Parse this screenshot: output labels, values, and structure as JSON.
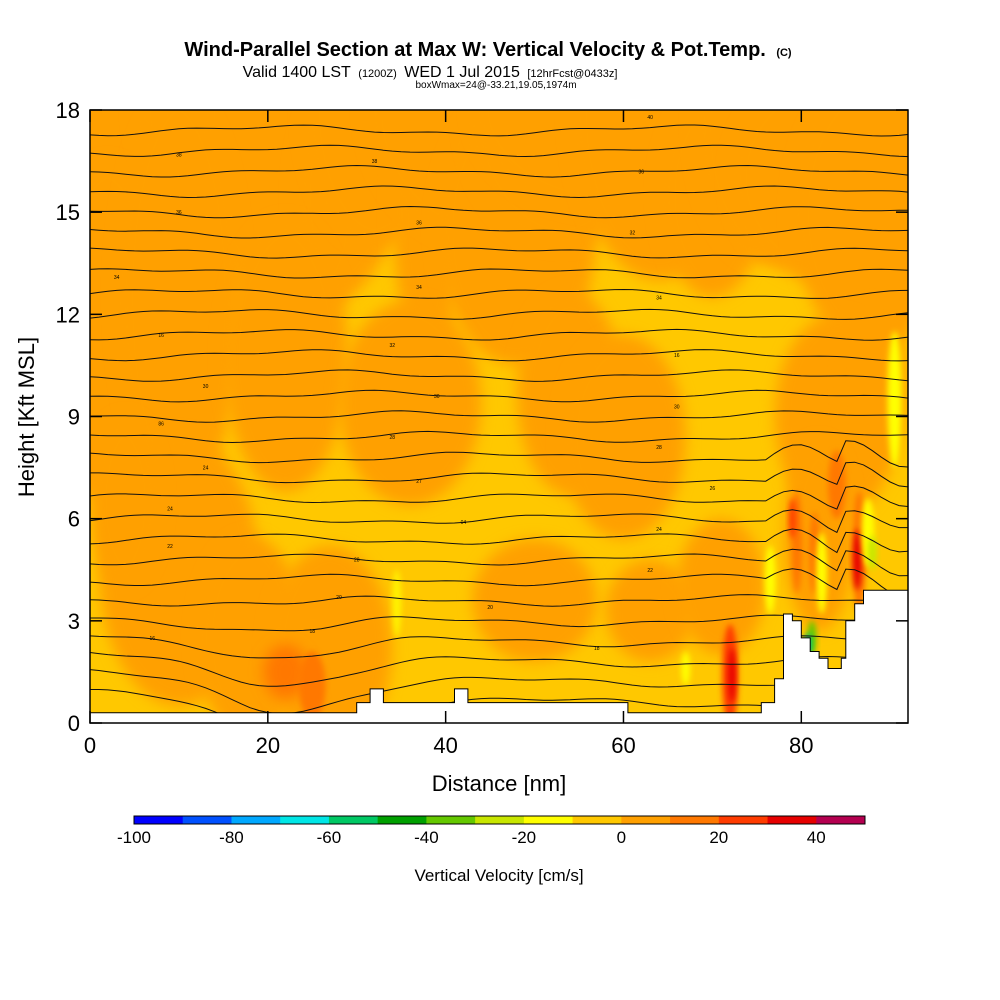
{
  "title": {
    "main": "Wind-Parallel Section at Max W: Vertical Velocity & Pot.Temp.",
    "copyright": "(C)",
    "valid_prefix": "Valid 1400 LST",
    "valid_utc": "(1200Z)",
    "valid_date": "WED 1 Jul 2015",
    "forecast": "[12hrFcst@0433z]",
    "box_info": "boxWmax=24@-33.21,19.05,1974m"
  },
  "chart_data": {
    "type": "heatmap",
    "xlabel": "Distance [nm]",
    "ylabel": "Height [Kft MSL]",
    "xlim": [
      0,
      92
    ],
    "ylim": [
      0,
      18
    ],
    "xticks": [
      0,
      20,
      40,
      60,
      80
    ],
    "yticks": [
      0,
      3,
      6,
      9,
      12,
      15,
      18
    ],
    "colorbar": {
      "label": "Vertical Velocity [cm/s]",
      "min": -100,
      "max": 50,
      "step": 10,
      "ticks": [
        -100,
        -80,
        -60,
        -40,
        -20,
        0,
        20,
        40
      ],
      "colors": [
        "#0000ff",
        "#0050ff",
        "#00a8ff",
        "#00e6e6",
        "#00c864",
        "#00a000",
        "#64c800",
        "#c8e600",
        "#ffff00",
        "#ffc800",
        "#ffa000",
        "#ff7800",
        "#ff3c00",
        "#e60000",
        "#b40050"
      ]
    },
    "theta_contour_labels": [
      {
        "x": 10,
        "y": 16.7,
        "text": "38"
      },
      {
        "x": 32,
        "y": 16.5,
        "text": "38"
      },
      {
        "x": 63,
        "y": 17.8,
        "text": "40"
      },
      {
        "x": 62,
        "y": 16.2,
        "text": "36"
      },
      {
        "x": 10,
        "y": 15.0,
        "text": "36"
      },
      {
        "x": 37,
        "y": 14.7,
        "text": "36"
      },
      {
        "x": 61,
        "y": 14.4,
        "text": "32"
      },
      {
        "x": 3,
        "y": 13.1,
        "text": "34"
      },
      {
        "x": 37,
        "y": 12.8,
        "text": "34"
      },
      {
        "x": 64,
        "y": 12.5,
        "text": "34"
      },
      {
        "x": 8,
        "y": 11.4,
        "text": "16"
      },
      {
        "x": 34,
        "y": 11.1,
        "text": "32"
      },
      {
        "x": 66,
        "y": 10.8,
        "text": "16"
      },
      {
        "x": 13,
        "y": 9.9,
        "text": "30"
      },
      {
        "x": 39,
        "y": 9.6,
        "text": "30"
      },
      {
        "x": 66,
        "y": 9.3,
        "text": "30"
      },
      {
        "x": 8,
        "y": 8.8,
        "text": "86"
      },
      {
        "x": 34,
        "y": 8.4,
        "text": "28"
      },
      {
        "x": 64,
        "y": 8.1,
        "text": "28"
      },
      {
        "x": 13,
        "y": 7.5,
        "text": "24"
      },
      {
        "x": 37,
        "y": 7.1,
        "text": "27"
      },
      {
        "x": 70,
        "y": 6.9,
        "text": "26"
      },
      {
        "x": 9,
        "y": 6.3,
        "text": "24"
      },
      {
        "x": 42,
        "y": 5.9,
        "text": "04"
      },
      {
        "x": 64,
        "y": 5.7,
        "text": "24"
      },
      {
        "x": 9,
        "y": 5.2,
        "text": "22"
      },
      {
        "x": 30,
        "y": 4.8,
        "text": "28"
      },
      {
        "x": 63,
        "y": 4.5,
        "text": "22"
      },
      {
        "x": 28,
        "y": 3.7,
        "text": "20"
      },
      {
        "x": 45,
        "y": 3.4,
        "text": "20"
      },
      {
        "x": 25,
        "y": 2.7,
        "text": "18"
      },
      {
        "x": 7,
        "y": 2.5,
        "text": "16"
      },
      {
        "x": 57,
        "y": 2.2,
        "text": "18"
      }
    ],
    "terrain": [
      [
        0,
        0.3
      ],
      [
        30,
        0.3
      ],
      [
        30,
        0.6
      ],
      [
        31.5,
        0.6
      ],
      [
        31.5,
        1.0
      ],
      [
        33,
        1.0
      ],
      [
        33,
        0.6
      ],
      [
        41,
        0.6
      ],
      [
        41,
        1.0
      ],
      [
        42.5,
        1.0
      ],
      [
        42.5,
        0.6
      ],
      [
        60.5,
        0.6
      ],
      [
        60.5,
        0.3
      ],
      [
        75.5,
        0.3
      ],
      [
        75.5,
        0.6
      ],
      [
        77,
        0.6
      ],
      [
        77,
        1.3
      ],
      [
        78,
        1.3
      ],
      [
        78,
        3.2
      ],
      [
        79,
        3.2
      ],
      [
        79,
        3.0
      ],
      [
        80,
        3.0
      ],
      [
        80,
        2.5
      ],
      [
        81,
        2.5
      ],
      [
        81,
        2.1
      ],
      [
        82,
        2.1
      ],
      [
        82,
        1.9
      ],
      [
        83,
        1.9
      ],
      [
        83,
        1.6
      ],
      [
        84.5,
        1.6
      ],
      [
        84.5,
        1.9
      ],
      [
        85,
        1.9
      ],
      [
        85,
        3.0
      ],
      [
        86,
        3.0
      ],
      [
        86,
        3.5
      ],
      [
        87,
        3.5
      ],
      [
        87,
        3.9
      ],
      [
        92,
        3.9
      ],
      [
        92,
        0
      ],
      [
        0,
        0
      ]
    ]
  }
}
